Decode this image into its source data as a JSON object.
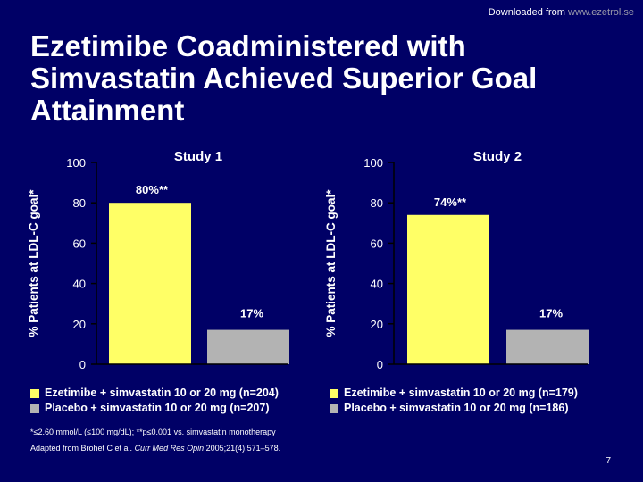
{
  "source": {
    "prefix": "Downloaded from ",
    "url": "www.ezetrol.se"
  },
  "title": "Ezetimibe Coadministered with Simvastatin Achieved Superior Goal Attainment",
  "chart_data": [
    {
      "type": "bar",
      "title": "Study 1",
      "ylabel": "% Patients at LDL-C goal*",
      "ylim": [
        0,
        100
      ],
      "yticks": [
        0,
        20,
        40,
        60,
        80,
        100
      ],
      "categories": [
        "Ezetimibe + simvastatin 10 or 20 mg (n=204)",
        "Placebo + simvastatin 10 or 20 mg (n=207)"
      ],
      "values": [
        80,
        17
      ],
      "data_labels": [
        "80%**",
        "17%"
      ],
      "colors": [
        "#ffff66",
        "#b3b3b3"
      ],
      "grid": false
    },
    {
      "type": "bar",
      "title": "Study 2",
      "ylabel": "% Patients at LDL-C goal*",
      "ylim": [
        0,
        100
      ],
      "yticks": [
        0,
        20,
        40,
        60,
        80,
        100
      ],
      "categories": [
        "Ezetimibe + simvastatin 10 or 20 mg (n=179)",
        "Placebo + simvastatin 10 or 20 mg (n=186)"
      ],
      "values": [
        74,
        17
      ],
      "data_labels": [
        "74%**",
        "17%"
      ],
      "colors": [
        "#ffff66",
        "#b3b3b3"
      ],
      "grid": false
    }
  ],
  "footnote": "*≤2.60 mmol/L (≤100 mg/dL); **p≤0.001 vs. simvastatin monotherapy",
  "reference": {
    "prefix": "Adapted from Brohet C et al. ",
    "journal": "Curr Med Res Opin",
    "suffix": " 2005;21(4):571–578."
  },
  "page_number": "7"
}
